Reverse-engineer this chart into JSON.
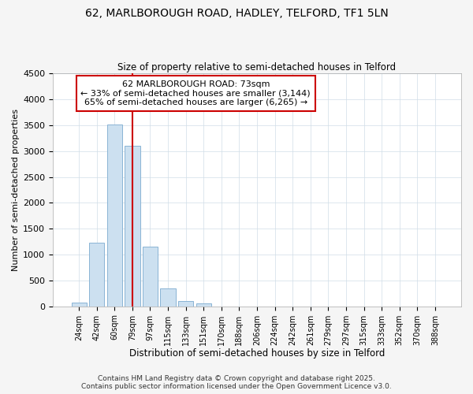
{
  "title_line1": "62, MARLBOROUGH ROAD, HADLEY, TELFORD, TF1 5LN",
  "title_line2": "Size of property relative to semi-detached houses in Telford",
  "xlabel": "Distribution of semi-detached houses by size in Telford",
  "ylabel": "Number of semi-detached properties",
  "categories": [
    "24sqm",
    "42sqm",
    "60sqm",
    "79sqm",
    "97sqm",
    "115sqm",
    "133sqm",
    "151sqm",
    "170sqm",
    "188sqm",
    "206sqm",
    "224sqm",
    "242sqm",
    "261sqm",
    "279sqm",
    "297sqm",
    "315sqm",
    "333sqm",
    "352sqm",
    "370sqm",
    "388sqm"
  ],
  "values": [
    75,
    1230,
    3520,
    3100,
    1150,
    350,
    100,
    50,
    0,
    0,
    0,
    0,
    0,
    0,
    0,
    0,
    0,
    0,
    0,
    0,
    0
  ],
  "bar_color": "#cce0f0",
  "bar_edge_color": "#8ab4d4",
  "property_line_x": 3.0,
  "annotation_text_line1": "62 MARLBOROUGH ROAD: 73sqm",
  "annotation_text_line2": "← 33% of semi-detached houses are smaller (3,144)",
  "annotation_text_line3": "65% of semi-detached houses are larger (6,265) →",
  "annotation_box_color": "#ffffff",
  "annotation_box_edge": "#cc0000",
  "vline_color": "#cc0000",
  "ylim": [
    0,
    4500
  ],
  "yticks": [
    0,
    500,
    1000,
    1500,
    2000,
    2500,
    3000,
    3500,
    4000,
    4500
  ],
  "footer_line1": "Contains HM Land Registry data © Crown copyright and database right 2025.",
  "footer_line2": "Contains public sector information licensed under the Open Government Licence v3.0.",
  "bg_color": "#f5f5f5",
  "plot_bg_color": "#ffffff",
  "grid_color": "#d0dde8"
}
